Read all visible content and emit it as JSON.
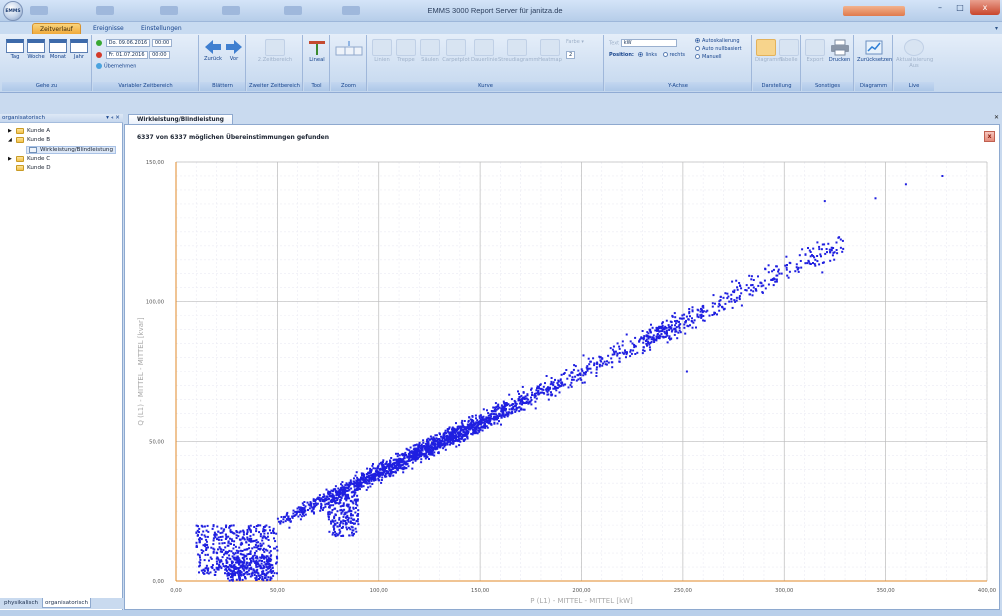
{
  "app": {
    "title": "EMMS 3000 Report Server für janitza.de",
    "logo_text": "EMMS",
    "window_buttons": {
      "minimize": "–",
      "restore": "□",
      "close": "x"
    }
  },
  "ribbon_tabs": [
    "Zeitverlauf",
    "Ereignisse",
    "Einstellungen"
  ],
  "ribbon_groups": {
    "gehe_zu": {
      "label": "Gehe zu",
      "buttons": [
        "Tag",
        "Woche",
        "Monat",
        "Jahr"
      ]
    },
    "variabler_zeitbereich": {
      "label": "Variabler Zeitbereich",
      "start_date": "Do. 09.06.2016",
      "start_time": "00:00",
      "end_date": "Fr. 01.07.2016",
      "end_time": "00:00",
      "apply": "Übernehmen"
    },
    "blaettern": {
      "label": "Blättern",
      "buttons": [
        "Zurück",
        "Vor"
      ]
    },
    "zweiter_zeitbereich": {
      "label": "Zweiter Zeitbereich",
      "buttons": [
        "2.Zeitbereich"
      ]
    },
    "tool": {
      "label": "Tool",
      "buttons": [
        "Lineal"
      ]
    },
    "zoom": {
      "label": "Zoom"
    },
    "kurve": {
      "label": "Kurve",
      "buttons": [
        "Linien",
        "Treppe",
        "Säulen",
        "Carpetplot",
        "Dauerlinie",
        "Streudiagramm",
        "Heatmap"
      ],
      "farbe_label": "Farbe",
      "line_width": "2"
    },
    "y_achse": {
      "label": "Y-Achse",
      "unit_label": "Text",
      "unit_value": "kW",
      "position_label": "Position:",
      "position_options": [
        "links",
        "rechts"
      ],
      "scale_options": [
        "Autoskalierung",
        "Auto nullbasiert",
        "Manuell"
      ]
    },
    "darstellung": {
      "label": "Darstellung",
      "buttons": [
        "Diagramm",
        "Tabelle"
      ]
    },
    "sonstiges": {
      "label": "Sonstiges",
      "buttons": [
        "Export",
        "Drucken"
      ]
    },
    "diagramm": {
      "label": "Diagramm",
      "buttons": [
        "Zurücksetzen"
      ]
    },
    "live": {
      "label": "Live",
      "buttons": [
        "Aktualisierung"
      ],
      "sub": "Aus"
    }
  },
  "left_panel": {
    "title": "organisatorisch",
    "header_icons": "▾ ⫞ ✕",
    "tree": [
      {
        "label": "Kunde A",
        "expander": "▶"
      },
      {
        "label": "Kunde B",
        "expander": "◢"
      },
      {
        "label": "Wirkleistung/Blindleistung",
        "expander": ""
      },
      {
        "label": "Kunde C",
        "expander": "▶"
      },
      {
        "label": "Kunde D",
        "expander": ""
      }
    ],
    "bottom_tabs": [
      "physikalisch",
      "organisatorisch"
    ]
  },
  "document": {
    "tab_label": "Wirkleistung/Blindleistung",
    "close_glyph": "✕",
    "match_text": "6337 von 6337 möglichen Übereinstimmungen gefunden",
    "close_button": "x"
  },
  "chart_data": {
    "type": "scatter",
    "title": "",
    "xlabel": "P (L1) - MITTEL - MITTEL [kW]",
    "ylabel": "Q (L1) - MITTEL - MITTEL [kvar]",
    "xlim": [
      0,
      400
    ],
    "ylim": [
      0,
      150
    ],
    "x_ticks": [
      "0,00",
      "50,00",
      "100,00",
      "150,00",
      "200,00",
      "250,00",
      "300,00",
      "350,00",
      "400,00"
    ],
    "y_ticks": [
      "0,00",
      "50,00",
      "100,00",
      "150,00"
    ],
    "grid": true,
    "point_color": "#1f1fe0",
    "point_count": 6337,
    "trend": {
      "x_start": 5,
      "y_start": 4.5,
      "slope": 0.36
    },
    "clusters": [
      {
        "x_range": [
          10,
          50
        ],
        "y_range": [
          2,
          20
        ],
        "density": "high"
      },
      {
        "x_range": [
          25,
          48
        ],
        "y_range": [
          0,
          9
        ],
        "density": "medium"
      },
      {
        "x_range": [
          75,
          90
        ],
        "y_range": [
          16,
          32
        ],
        "density": "medium"
      }
    ],
    "outliers": [
      {
        "x": 360,
        "y": 142
      },
      {
        "x": 378,
        "y": 145
      },
      {
        "x": 345,
        "y": 137
      },
      {
        "x": 320,
        "y": 136
      },
      {
        "x": 252,
        "y": 75
      }
    ]
  }
}
